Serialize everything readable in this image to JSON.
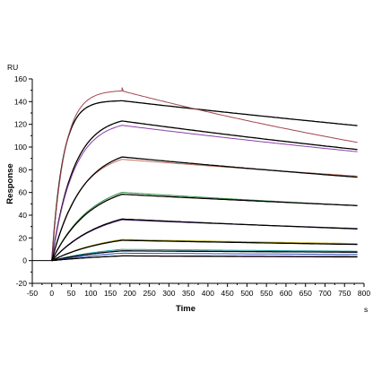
{
  "chart_data": {
    "type": "line",
    "y_unit": "RU",
    "x_unit": "s",
    "xlabel": "Time",
    "ylabel": "Response",
    "xlim": [
      -50,
      800
    ],
    "ylim": [
      -20,
      160
    ],
    "x_ticks": [
      -50,
      0,
      50,
      100,
      150,
      200,
      250,
      300,
      350,
      400,
      450,
      500,
      550,
      600,
      650,
      700,
      750,
      800
    ],
    "y_ticks": [
      -20,
      0,
      20,
      40,
      60,
      80,
      100,
      120,
      140,
      160
    ],
    "grid": false,
    "association_end": 180,
    "injection_start": 0,
    "sensorgrams": [
      {
        "kind": "fit",
        "color": "#000000",
        "plateau": 141,
        "kobs": 0.035,
        "kd_rate": 0.00028
      },
      {
        "kind": "data",
        "color": "#a0474f",
        "plateau": 150,
        "kobs": 0.031,
        "kd_rate": 0.0006,
        "spike": 3
      },
      {
        "kind": "fit",
        "color": "#000000",
        "plateau": 128,
        "kobs": 0.018,
        "kd_rate": 0.00038
      },
      {
        "kind": "data",
        "color": "#8b3fa8",
        "plateau": 124,
        "kobs": 0.018,
        "kd_rate": 0.00036
      },
      {
        "kind": "data",
        "color": "#c07060",
        "plateau": 97,
        "kobs": 0.014,
        "kd_rate": 0.0003
      },
      {
        "kind": "fit",
        "color": "#000000",
        "plateau": 101,
        "kobs": 0.013,
        "kd_rate": 0.00036
      },
      {
        "kind": "data",
        "color": "#2e8b3d",
        "plateau": 72,
        "kobs": 0.01,
        "kd_rate": 0.00036
      },
      {
        "kind": "fit",
        "color": "#000000",
        "plateau": 70,
        "kobs": 0.01,
        "kd_rate": 0.00031
      },
      {
        "kind": "data",
        "color": "#6a3d9a",
        "plateau": 47,
        "kobs": 0.008,
        "kd_rate": 0.00039
      },
      {
        "kind": "fit",
        "color": "#000000",
        "plateau": 48,
        "kobs": 0.008,
        "kd_rate": 0.00045
      },
      {
        "kind": "data",
        "color": "#b8b010",
        "plateau": 26,
        "kobs": 0.007,
        "kd_rate": 0.00036
      },
      {
        "kind": "fit",
        "color": "#000000",
        "plateau": 25,
        "kobs": 0.007,
        "kd_rate": 0.00038
      },
      {
        "kind": "data",
        "color": "#1aa0a0",
        "plateau": 15,
        "kobs": 0.006,
        "kd_rate": 0.0003
      },
      {
        "kind": "fit",
        "color": "#000000",
        "plateau": 13,
        "kobs": 0.006,
        "kd_rate": 0.00024
      },
      {
        "kind": "data",
        "color": "#3050c0",
        "plateau": 11,
        "kobs": 0.005,
        "kd_rate": 0.0003
      },
      {
        "kind": "data",
        "color": "#a02080",
        "plateau": 7,
        "kobs": 0.005,
        "kd_rate": 0.0005
      },
      {
        "kind": "fit",
        "color": "#000000",
        "plateau": 7,
        "kobs": 0.005,
        "kd_rate": 0.0003
      }
    ]
  }
}
